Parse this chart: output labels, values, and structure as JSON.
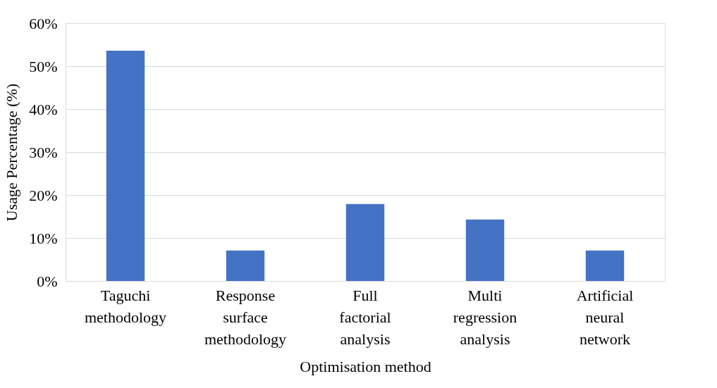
{
  "chart_data": {
    "type": "bar",
    "xlabel": "Optimisation method",
    "ylabel": "Usage Percentage (%)",
    "categories": [
      "Taguchi methodology",
      "Response surface methodology",
      "Full factorial analysis",
      "Multi regression analysis",
      "Artificial neural network"
    ],
    "values": [
      53.6,
      7.1,
      17.9,
      14.3,
      7.1
    ],
    "color": "#4472c4",
    "ylim": [
      0,
      60
    ],
    "yticks": [
      {
        "value": 0,
        "label": "0%"
      },
      {
        "value": 10,
        "label": "10%"
      },
      {
        "value": 20,
        "label": "20%"
      },
      {
        "value": 30,
        "label": "30%"
      },
      {
        "value": 40,
        "label": "40%"
      },
      {
        "value": 50,
        "label": "50%"
      },
      {
        "value": 60,
        "label": "60%"
      }
    ],
    "grid": "y"
  }
}
